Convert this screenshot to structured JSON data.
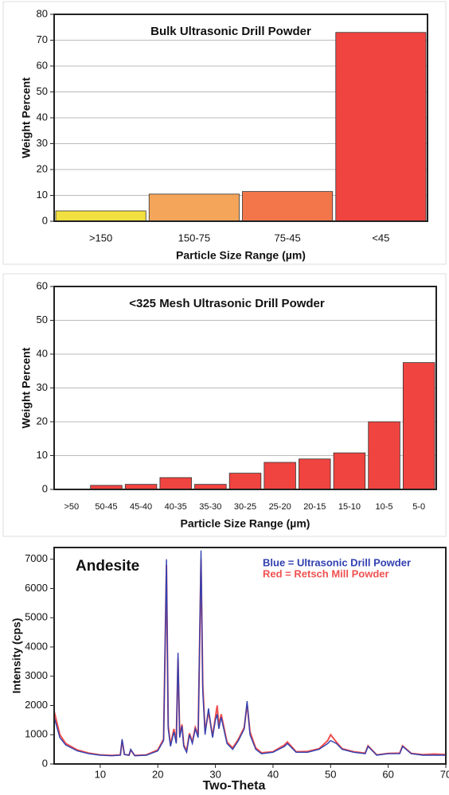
{
  "chart_data": [
    {
      "type": "bar",
      "title": "Bulk Ultrasonic Drill Powder",
      "x_label": "Particle Size Range (µm)",
      "y_label": "Weight Percent",
      "categories": [
        ">150",
        "150-75",
        "75-45",
        "<45"
      ],
      "values": [
        4,
        10.5,
        11.5,
        73
      ],
      "colors": [
        "#f2e040",
        "#f4a55a",
        "#f2764a",
        "#f04440"
      ],
      "ylim": [
        0,
        80
      ],
      "yticks": [
        0,
        10,
        20,
        30,
        40,
        50,
        60,
        70,
        80
      ],
      "grid": true
    },
    {
      "type": "bar",
      "title": "<325 Mesh Ultrasonic Drill Powder",
      "x_label": "Particle Size Range (µm)",
      "y_label": "Weight Percent",
      "categories": [
        ">50",
        "50-45",
        "45-40",
        "40-35",
        "35-30",
        "30-25",
        "25-20",
        "20-15",
        "15-10",
        "10-5",
        "5-0"
      ],
      "values": [
        0,
        1.2,
        1.5,
        3.5,
        1.5,
        4.8,
        8,
        9,
        10.8,
        20,
        37.5
      ],
      "color": "#f04440",
      "ylim": [
        0,
        60
      ],
      "yticks": [
        0,
        10,
        20,
        30,
        40,
        50,
        60
      ],
      "grid": true
    },
    {
      "type": "line",
      "annotation": "Andesite",
      "x_label": "Two-Theta",
      "y_label": "Intensity (cps)",
      "x": [
        2,
        3,
        4,
        6,
        8,
        10,
        12,
        13.5,
        13.8,
        14.2,
        15,
        15.3,
        16,
        18,
        20,
        21,
        21.5,
        21.8,
        22.2,
        22.8,
        23.2,
        23.5,
        23.8,
        24.2,
        24.5,
        25,
        25.5,
        26,
        26.5,
        27,
        27.5,
        27.8,
        28.2,
        28.8,
        29.5,
        30,
        30.3,
        30.6,
        31,
        32,
        33,
        34,
        35,
        35.5,
        36,
        37,
        38,
        40,
        42,
        42.5,
        44,
        46,
        48,
        49.5,
        50,
        51,
        52,
        54,
        56,
        56.5,
        58,
        60,
        62,
        62.5,
        64,
        66,
        68,
        70
      ],
      "series": [
        {
          "name": "Red =  Retsch Mill Powder",
          "color": "#f05050",
          "values": [
            1800,
            1000,
            700,
            480,
            370,
            310,
            290,
            310,
            800,
            330,
            300,
            480,
            290,
            310,
            480,
            850,
            6800,
            1300,
            650,
            1200,
            750,
            3600,
            1000,
            1350,
            650,
            450,
            1050,
            750,
            1250,
            1000,
            7000,
            2700,
            1100,
            1800,
            950,
            1600,
            2000,
            1300,
            1700,
            750,
            550,
            850,
            1250,
            2050,
            1100,
            550,
            380,
            420,
            650,
            750,
            420,
            430,
            520,
            800,
            1000,
            750,
            520,
            420,
            370,
            620,
            310,
            360,
            370,
            620,
            360,
            320,
            340,
            320
          ]
        },
        {
          "name": "Blue = Ultrasonic Drill Powder",
          "color": "#3040b0",
          "values": [
            1600,
            900,
            650,
            450,
            350,
            300,
            280,
            300,
            850,
            320,
            300,
            500,
            280,
            300,
            450,
            800,
            7000,
            1200,
            600,
            1100,
            700,
            3800,
            900,
            1300,
            600,
            400,
            1000,
            700,
            1200,
            900,
            7300,
            2500,
            1000,
            1900,
            900,
            1500,
            1700,
            1200,
            1600,
            700,
            500,
            800,
            1200,
            2150,
            1000,
            500,
            350,
            400,
            600,
            700,
            400,
            400,
            500,
            700,
            800,
            700,
            500,
            400,
            350,
            600,
            300,
            350,
            350,
            600,
            350,
            300,
            300,
            300
          ]
        }
      ],
      "xlim": [
        2,
        70
      ],
      "xticks": [
        10,
        20,
        30,
        40,
        50,
        60,
        70
      ],
      "ylim": [
        0,
        7400
      ],
      "yticks": [
        0,
        1000,
        2000,
        3000,
        4000,
        5000,
        6000,
        7000
      ]
    }
  ]
}
